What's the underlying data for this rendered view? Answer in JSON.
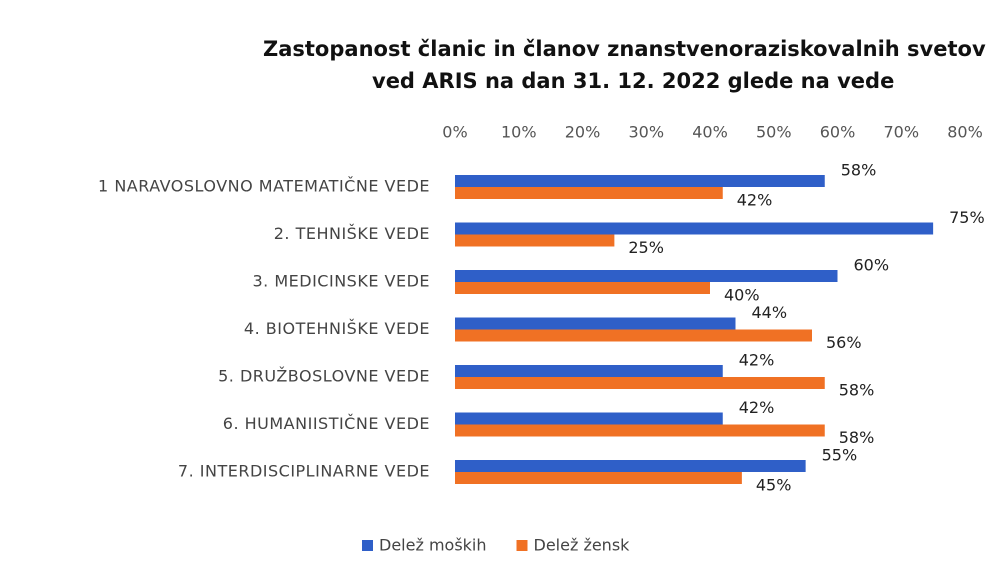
{
  "chart_data": {
    "type": "hbar",
    "title": [
      "Zastopanost članic in članov znanstvenoraziskovalnih svetov",
      "ved ARIS na dan 31. 12. 2022 glede na vede"
    ],
    "categories": [
      "1 NARAVOSLOVNO MATEMATIČNE VEDE",
      "2. TEHNIŠKE VEDE",
      "3. MEDICINSKE VEDE",
      "4. BIOTEHNIŠKE VEDE",
      "5. DRUŽBOSLOVNE VEDE",
      "6. HUMANIISTIČNE VEDE",
      "7. INTERDISCIPLINARNE VEDE"
    ],
    "series": [
      {
        "name": "Delež moških",
        "color": "#2f5fc8",
        "values": [
          58,
          75,
          60,
          44,
          42,
          42,
          55
        ],
        "value_labels": [
          "58%",
          "75%",
          "60%",
          "44%",
          "42%",
          "42%",
          "55%"
        ]
      },
      {
        "name": "Delež žensk",
        "color": "#f07124",
        "values": [
          42,
          25,
          40,
          56,
          58,
          58,
          45
        ],
        "value_labels": [
          "42%",
          "25%",
          "40%",
          "56%",
          "58%",
          "58%",
          "45%"
        ]
      }
    ],
    "xlim": [
      0,
      80
    ],
    "xticks": [
      {
        "value": 0,
        "label": "0%"
      },
      {
        "value": 10,
        "label": "10%"
      },
      {
        "value": 20,
        "label": "20%"
      },
      {
        "value": 30,
        "label": "30%"
      },
      {
        "value": 40,
        "label": "40%"
      },
      {
        "value": 50,
        "label": "50%"
      },
      {
        "value": 60,
        "label": "60%"
      },
      {
        "value": 70,
        "label": "70%"
      },
      {
        "value": 80,
        "label": "80%"
      }
    ],
    "legend": "bottom"
  }
}
